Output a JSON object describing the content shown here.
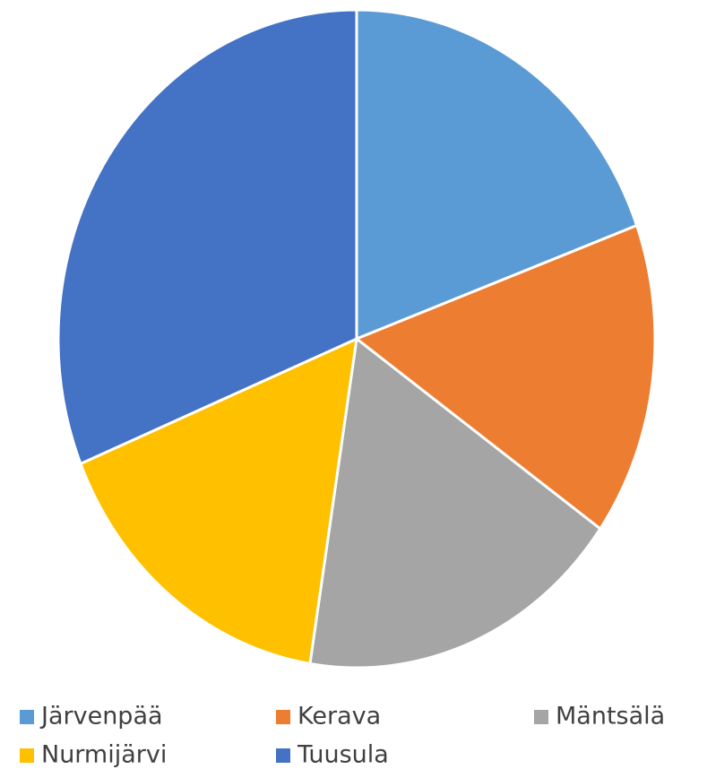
{
  "chart_data": {
    "type": "pie",
    "categories": [
      "Järvenpää",
      "Kerava",
      "Mäntsälä",
      "Nurmijärvi",
      "Tuusula"
    ],
    "values": [
      19.4,
      15.4,
      17.7,
      16.3,
      31.2
    ],
    "colors": [
      "#5b9bd5",
      "#ed7d31",
      "#a5a5a5",
      "#ffc000",
      "#4472c4"
    ],
    "legend": "bottom"
  }
}
